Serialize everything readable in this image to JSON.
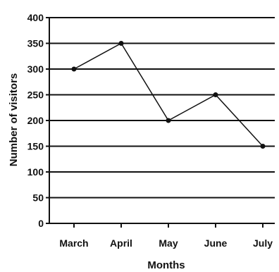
{
  "chart_data": {
    "type": "line",
    "title": "",
    "xlabel": "Months",
    "ylabel": "Number of visitors",
    "categories": [
      "March",
      "April",
      "May",
      "June",
      "July"
    ],
    "values": [
      300,
      350,
      200,
      250,
      150
    ],
    "ylim": [
      0,
      400
    ],
    "yticks": [
      0,
      50,
      100,
      150,
      200,
      250,
      300,
      350,
      400
    ],
    "grid": true,
    "legend": "none"
  }
}
